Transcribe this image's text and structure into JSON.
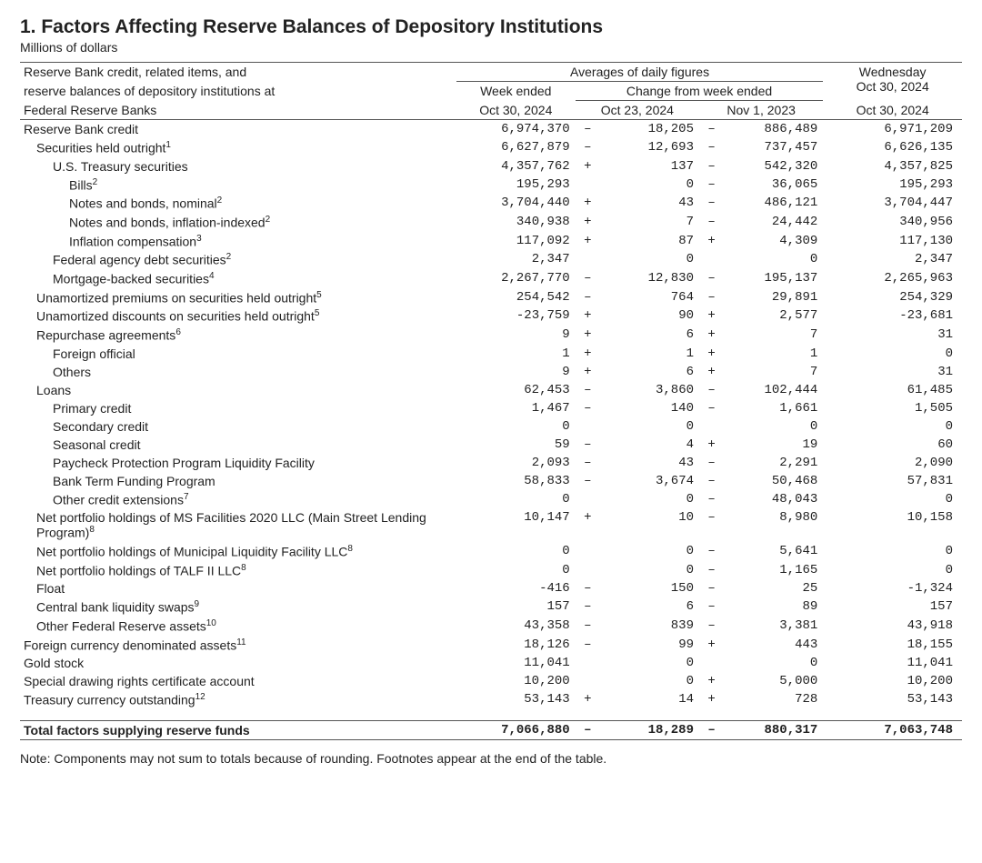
{
  "title": "1. Factors Affecting Reserve Balances of Depository Institutions",
  "subcaption": "Millions of dollars",
  "header": {
    "lbl1": "Reserve Bank credit, related items, and",
    "lbl2": "reserve balances of depository institutions at",
    "lbl3": "Federal Reserve Banks",
    "avgs": "Averages of daily figures",
    "chg": "Change from week ended",
    "wk": "Week ended",
    "wk_date": "Oct 30, 2024",
    "c1": "Oct 23, 2024",
    "c2": "Nov 1, 2023",
    "wed": "Wednesday",
    "wed_date": "Oct 30, 2024"
  },
  "rows": [
    {
      "lbl": "Reserve Bank credit",
      "ind": 0,
      "a": "6,974,370",
      "s1": "–",
      "v1": "18,205",
      "s2": "–",
      "v2": "886,489",
      "w": "6,971,209"
    },
    {
      "lbl": "Securities held outright",
      "sup": "1",
      "ind": 1,
      "a": "6,627,879",
      "s1": "–",
      "v1": "12,693",
      "s2": "–",
      "v2": "737,457",
      "w": "6,626,135"
    },
    {
      "lbl": "U.S. Treasury securities",
      "ind": 2,
      "a": "4,357,762",
      "s1": "+",
      "v1": "137",
      "s2": "–",
      "v2": "542,320",
      "w": "4,357,825"
    },
    {
      "lbl": "Bills",
      "sup": "2",
      "ind": 3,
      "a": "195,293",
      "s1": "",
      "v1": "0",
      "s2": "–",
      "v2": "36,065",
      "w": "195,293"
    },
    {
      "lbl": "Notes and bonds, nominal",
      "sup": "2",
      "ind": 3,
      "a": "3,704,440",
      "s1": "+",
      "v1": "43",
      "s2": "–",
      "v2": "486,121",
      "w": "3,704,447"
    },
    {
      "lbl": "Notes and bonds, inflation-indexed",
      "sup": "2",
      "ind": 3,
      "a": "340,938",
      "s1": "+",
      "v1": "7",
      "s2": "–",
      "v2": "24,442",
      "w": "340,956"
    },
    {
      "lbl": "Inflation compensation",
      "sup": "3",
      "ind": 3,
      "a": "117,092",
      "s1": "+",
      "v1": "87",
      "s2": "+",
      "v2": "4,309",
      "w": "117,130"
    },
    {
      "lbl": "Federal agency debt securities",
      "sup": "2",
      "ind": 2,
      "a": "2,347",
      "s1": "",
      "v1": "0",
      "s2": "",
      "v2": "0",
      "w": "2,347"
    },
    {
      "lbl": "Mortgage-backed securities",
      "sup": "4",
      "ind": 2,
      "a": "2,267,770",
      "s1": "–",
      "v1": "12,830",
      "s2": "–",
      "v2": "195,137",
      "w": "2,265,963"
    },
    {
      "lbl": "Unamortized premiums on securities held outright",
      "sup": "5",
      "ind": 1,
      "a": "254,542",
      "s1": "–",
      "v1": "764",
      "s2": "–",
      "v2": "29,891",
      "w": "254,329"
    },
    {
      "lbl": "Unamortized discounts on securities held outright",
      "sup": "5",
      "ind": 1,
      "a": "-23,759",
      "s1": "+",
      "v1": "90",
      "s2": "+",
      "v2": "2,577",
      "w": "-23,681"
    },
    {
      "lbl": "Repurchase agreements",
      "sup": "6",
      "ind": 1,
      "a": "9",
      "s1": "+",
      "v1": "6",
      "s2": "+",
      "v2": "7",
      "w": "31"
    },
    {
      "lbl": "Foreign official",
      "ind": 2,
      "a": "1",
      "s1": "+",
      "v1": "1",
      "s2": "+",
      "v2": "1",
      "w": "0"
    },
    {
      "lbl": "Others",
      "ind": 2,
      "a": "9",
      "s1": "+",
      "v1": "6",
      "s2": "+",
      "v2": "7",
      "w": "31"
    },
    {
      "lbl": "Loans",
      "ind": 1,
      "a": "62,453",
      "s1": "–",
      "v1": "3,860",
      "s2": "–",
      "v2": "102,444",
      "w": "61,485"
    },
    {
      "lbl": "Primary credit",
      "ind": 2,
      "a": "1,467",
      "s1": "–",
      "v1": "140",
      "s2": "–",
      "v2": "1,661",
      "w": "1,505"
    },
    {
      "lbl": "Secondary credit",
      "ind": 2,
      "a": "0",
      "s1": "",
      "v1": "0",
      "s2": "",
      "v2": "0",
      "w": "0"
    },
    {
      "lbl": "Seasonal credit",
      "ind": 2,
      "a": "59",
      "s1": "–",
      "v1": "4",
      "s2": "+",
      "v2": "19",
      "w": "60"
    },
    {
      "lbl": "Paycheck Protection Program Liquidity Facility",
      "ind": 2,
      "a": "2,093",
      "s1": "–",
      "v1": "43",
      "s2": "–",
      "v2": "2,291",
      "w": "2,090"
    },
    {
      "lbl": "Bank Term Funding Program",
      "ind": 2,
      "a": "58,833",
      "s1": "–",
      "v1": "3,674",
      "s2": "–",
      "v2": "50,468",
      "w": "57,831"
    },
    {
      "lbl": "Other credit extensions",
      "sup": "7",
      "ind": 2,
      "a": "0",
      "s1": "",
      "v1": "0",
      "s2": "–",
      "v2": "48,043",
      "w": "0"
    },
    {
      "lbl": "Net portfolio holdings of MS Facilities 2020 LLC (Main Street Lending Program)",
      "sup": "8",
      "ind": 1,
      "a": "10,147",
      "s1": "+",
      "v1": "10",
      "s2": "–",
      "v2": "8,980",
      "w": "10,158"
    },
    {
      "lbl": "Net portfolio holdings of Municipal Liquidity Facility LLC",
      "sup": "8",
      "ind": 1,
      "a": "0",
      "s1": "",
      "v1": "0",
      "s2": "–",
      "v2": "5,641",
      "w": "0"
    },
    {
      "lbl": "Net portfolio holdings of TALF II LLC",
      "sup": "8",
      "ind": 1,
      "a": "0",
      "s1": "",
      "v1": "0",
      "s2": "–",
      "v2": "1,165",
      "w": "0"
    },
    {
      "lbl": "Float",
      "ind": 1,
      "a": "-416",
      "s1": "–",
      "v1": "150",
      "s2": "–",
      "v2": "25",
      "w": "-1,324"
    },
    {
      "lbl": "Central bank liquidity swaps",
      "sup": "9",
      "ind": 1,
      "a": "157",
      "s1": "–",
      "v1": "6",
      "s2": "–",
      "v2": "89",
      "w": "157"
    },
    {
      "lbl": "Other Federal Reserve assets",
      "sup": "10",
      "ind": 1,
      "a": "43,358",
      "s1": "–",
      "v1": "839",
      "s2": "–",
      "v2": "3,381",
      "w": "43,918"
    },
    {
      "lbl": "Foreign currency denominated assets",
      "sup": "11",
      "ind": 0,
      "a": "18,126",
      "s1": "–",
      "v1": "99",
      "s2": "+",
      "v2": "443",
      "w": "18,155"
    },
    {
      "lbl": "Gold stock",
      "ind": 0,
      "a": "11,041",
      "s1": "",
      "v1": "0",
      "s2": "",
      "v2": "0",
      "w": "11,041"
    },
    {
      "lbl": "Special drawing rights certificate account",
      "ind": 0,
      "a": "10,200",
      "s1": "",
      "v1": "0",
      "s2": "+",
      "v2": "5,000",
      "w": "10,200"
    },
    {
      "lbl": "Treasury currency outstanding",
      "sup": "12",
      "ind": 0,
      "a": "53,143",
      "s1": "+",
      "v1": "14",
      "s2": "+",
      "v2": "728",
      "w": "53,143"
    }
  ],
  "total": {
    "lbl": "Total factors supplying reserve funds",
    "a": "7,066,880",
    "s1": "–",
    "v1": "18,289",
    "s2": "–",
    "v2": "880,317",
    "w": "7,063,748"
  },
  "note": "Note: Components may not sum to totals because of rounding. Footnotes appear at the end of the table."
}
